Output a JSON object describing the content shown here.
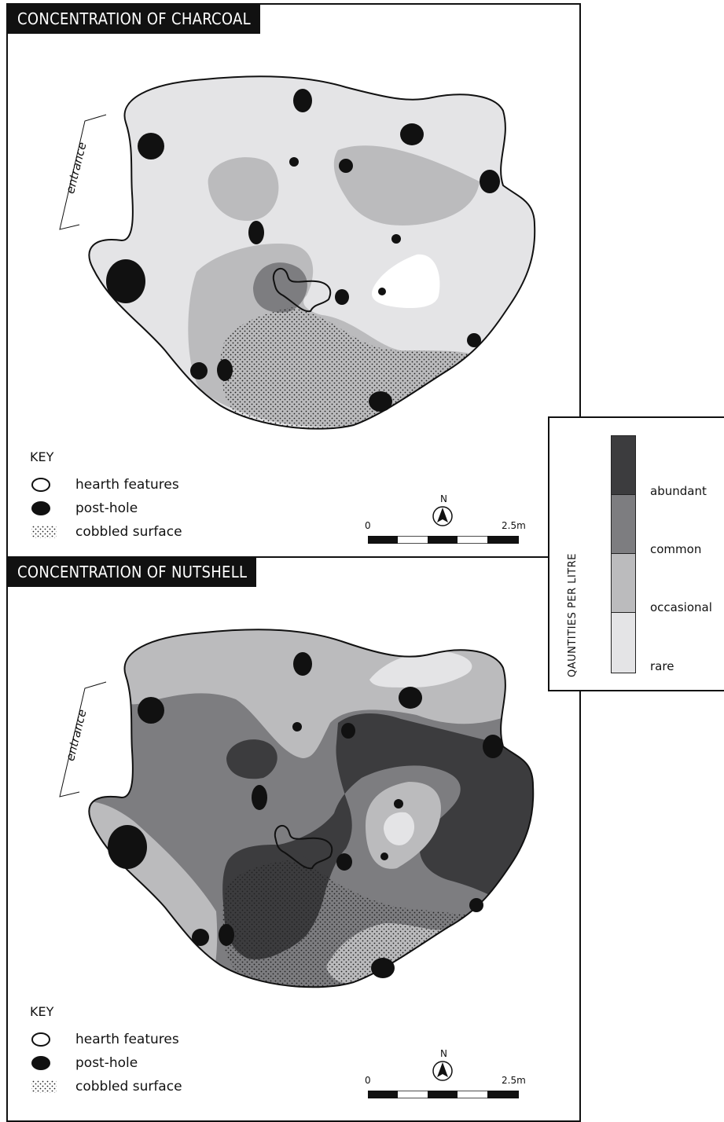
{
  "colors": {
    "abundant": "#3c3c3e",
    "common": "#7d7d80",
    "occasional": "#bbbbbd",
    "rare": "#e4e4e6",
    "white": "#ffffff",
    "ink": "#111111"
  },
  "maps": [
    {
      "title": "CONCENTRATION OF CHARCOAL",
      "entrance_label": "entrance",
      "key": {
        "title": "KEY",
        "items": [
          {
            "label": "hearth features",
            "symbol": "hearth-icon"
          },
          {
            "label": "post-hole",
            "symbol": "post-hole-icon"
          },
          {
            "label": "cobbled surface",
            "symbol": "cobbled-surface-icon"
          }
        ]
      },
      "scale": {
        "start": "0",
        "end": "2.5m",
        "north": "N"
      }
    },
    {
      "title": "CONCENTRATION OF NUTSHELL",
      "entrance_label": "entrance",
      "key": {
        "title": "KEY",
        "items": [
          {
            "label": "hearth features",
            "symbol": "hearth-icon"
          },
          {
            "label": "post-hole",
            "symbol": "post-hole-icon"
          },
          {
            "label": "cobbled surface",
            "symbol": "cobbled-surface-icon"
          }
        ]
      },
      "scale": {
        "start": "0",
        "end": "2.5m",
        "north": "N"
      }
    }
  ],
  "legend": {
    "title": "QAUNTITIES PER LITRE",
    "levels": [
      {
        "label": "abundant",
        "color": "#3c3c3e"
      },
      {
        "label": "common",
        "color": "#7d7d80"
      },
      {
        "label": "occasional",
        "color": "#bbbbbd"
      },
      {
        "label": "rare",
        "color": "#e4e4e6"
      }
    ]
  }
}
